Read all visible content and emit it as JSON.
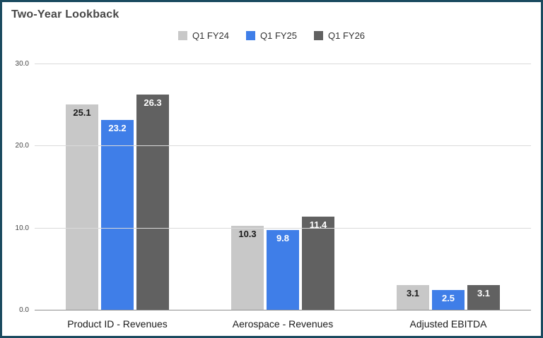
{
  "chart_data": {
    "type": "bar",
    "title": "Two-Year Lookback",
    "categories": [
      "Product ID - Revenues",
      "Aerospace - Revenues",
      "Adjusted EBITDA"
    ],
    "series": [
      {
        "name": "Q1 FY24",
        "color": "#c8c8c8",
        "label_color": "#1a1a1a",
        "values": [
          25.1,
          10.3,
          3.1
        ]
      },
      {
        "name": "Q1 FY25",
        "color": "#3f7ee8",
        "label_color": "#ffffff",
        "values": [
          23.2,
          9.8,
          2.5
        ]
      },
      {
        "name": "Q1 FY26",
        "color": "#616161",
        "label_color": "#ffffff",
        "values": [
          26.3,
          11.4,
          3.1
        ]
      }
    ],
    "ylim": [
      0,
      30
    ],
    "yticks": [
      {
        "value": 0,
        "label": "0.0"
      },
      {
        "value": 10,
        "label": "10.0"
      },
      {
        "value": 20,
        "label": "20.0"
      },
      {
        "value": 30,
        "label": "30.0"
      }
    ],
    "grid": true,
    "legend_position": "top",
    "xlabel": "",
    "ylabel": ""
  },
  "colors": {
    "frame_border": "#1a4a5f",
    "title_text": "#474747",
    "gridline": "#dadada",
    "axis_line": "#8f8f8f",
    "background": "#ffffff"
  }
}
